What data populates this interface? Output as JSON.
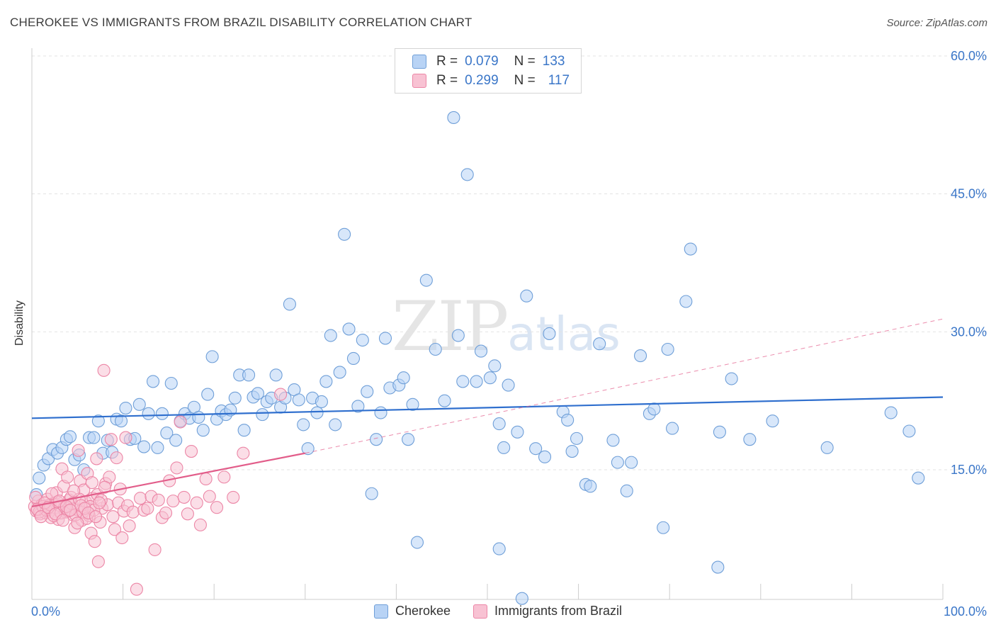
{
  "title": "CHEROKEE VS IMMIGRANTS FROM BRAZIL DISABILITY CORRELATION CHART",
  "source": "Source: ZipAtlas.com",
  "watermark": {
    "zip": "ZIP",
    "atlas": "atlas"
  },
  "colors": {
    "cherokee_fill": "#b8d3f5",
    "cherokee_stroke": "#6f9fd8",
    "cherokee_line": "#2f6fce",
    "brazil_fill": "#f8c2d3",
    "brazil_stroke": "#ec86a6",
    "brazil_line": "#e25d8a",
    "axis_text": "#3a76c8",
    "grid": "#e3e3e3"
  },
  "legend": {
    "rows": [
      {
        "r_label": "R =",
        "r_value": "0.079",
        "n_label": "N =",
        "n_value": "133"
      },
      {
        "r_label": "R =",
        "r_value": "0.299",
        "n_label": "N =",
        "n_value": "117"
      }
    ],
    "bottom": [
      "Cherokee",
      "Immigrants from Brazil"
    ]
  },
  "chart_data": {
    "type": "scatter",
    "title": "CHEROKEE VS IMMIGRANTS FROM BRAZIL DISABILITY CORRELATION CHART",
    "xlabel": "",
    "ylabel": "Disability",
    "xlim": [
      0,
      100
    ],
    "ylim": [
      0,
      62
    ],
    "x_tick_labels": [
      "0.0%",
      "100.0%"
    ],
    "y_ticks": [
      15,
      30,
      45,
      60
    ],
    "y_tick_labels": [
      "15.0%",
      "30.0%",
      "45.0%",
      "60.0%"
    ],
    "grid": "horizontal dashed",
    "legend_position": "top-center",
    "series": [
      {
        "name": "Cherokee",
        "r": 0.079,
        "n": 133,
        "trend": {
          "x": [
            0,
            100
          ],
          "y": [
            20.6,
            22.9
          ],
          "style": "solid"
        },
        "points": [
          [
            0.5,
            12.3
          ],
          [
            0.8,
            14.1
          ],
          [
            1.3,
            15.5
          ],
          [
            1.8,
            16.2
          ],
          [
            2.3,
            17.2
          ],
          [
            2.8,
            16.8
          ],
          [
            3.3,
            17.4
          ],
          [
            3.8,
            18.3
          ],
          [
            4.2,
            18.6
          ],
          [
            4.7,
            16.1
          ],
          [
            5.2,
            16.6
          ],
          [
            5.7,
            15.0
          ],
          [
            6.3,
            18.5
          ],
          [
            6.8,
            18.5
          ],
          [
            7.3,
            20.3
          ],
          [
            7.8,
            16.8
          ],
          [
            8.3,
            18.2
          ],
          [
            8.8,
            16.9
          ],
          [
            9.3,
            20.5
          ],
          [
            9.8,
            20.3
          ],
          [
            10.3,
            21.7
          ],
          [
            10.8,
            18.3
          ],
          [
            11.3,
            18.4
          ],
          [
            11.8,
            22.1
          ],
          [
            12.3,
            17.5
          ],
          [
            12.8,
            21.1
          ],
          [
            13.3,
            24.6
          ],
          [
            13.8,
            17.4
          ],
          [
            14.3,
            21.1
          ],
          [
            14.8,
            19.0
          ],
          [
            15.3,
            24.4
          ],
          [
            15.8,
            18.2
          ],
          [
            16.3,
            20.3
          ],
          [
            16.8,
            21.1
          ],
          [
            17.3,
            20.6
          ],
          [
            17.8,
            21.8
          ],
          [
            18.3,
            20.7
          ],
          [
            18.8,
            19.3
          ],
          [
            19.3,
            23.2
          ],
          [
            19.8,
            27.3
          ],
          [
            20.3,
            20.5
          ],
          [
            20.8,
            21.4
          ],
          [
            21.3,
            21.0
          ],
          [
            21.8,
            21.5
          ],
          [
            22.3,
            22.8
          ],
          [
            22.8,
            25.3
          ],
          [
            23.3,
            19.3
          ],
          [
            23.8,
            25.3
          ],
          [
            24.3,
            22.9
          ],
          [
            24.8,
            23.3
          ],
          [
            25.3,
            21.0
          ],
          [
            25.8,
            22.4
          ],
          [
            26.3,
            22.8
          ],
          [
            26.8,
            25.3
          ],
          [
            27.3,
            21.8
          ],
          [
            27.8,
            22.8
          ],
          [
            28.3,
            33.0
          ],
          [
            28.8,
            23.7
          ],
          [
            29.3,
            22.6
          ],
          [
            29.8,
            19.9
          ],
          [
            30.3,
            17.3
          ],
          [
            30.8,
            22.8
          ],
          [
            31.3,
            21.2
          ],
          [
            31.8,
            22.4
          ],
          [
            32.3,
            24.6
          ],
          [
            32.8,
            29.6
          ],
          [
            33.3,
            19.9
          ],
          [
            33.8,
            25.6
          ],
          [
            34.3,
            40.6
          ],
          [
            34.8,
            30.3
          ],
          [
            35.3,
            27.1
          ],
          [
            35.8,
            21.9
          ],
          [
            36.3,
            29.1
          ],
          [
            36.8,
            23.5
          ],
          [
            37.3,
            12.4
          ],
          [
            37.8,
            18.3
          ],
          [
            38.3,
            21.2
          ],
          [
            38.8,
            29.3
          ],
          [
            39.3,
            23.9
          ],
          [
            40.3,
            24.2
          ],
          [
            40.8,
            25.0
          ],
          [
            41.3,
            18.3
          ],
          [
            41.8,
            22.1
          ],
          [
            42.3,
            7.1
          ],
          [
            43.3,
            35.6
          ],
          [
            44.3,
            28.1
          ],
          [
            45.3,
            22.5
          ],
          [
            46.3,
            53.3
          ],
          [
            46.8,
            29.6
          ],
          [
            47.3,
            24.6
          ],
          [
            47.8,
            47.1
          ],
          [
            48.8,
            24.6
          ],
          [
            49.3,
            27.9
          ],
          [
            50.3,
            25.0
          ],
          [
            50.8,
            26.3
          ],
          [
            51.3,
            20.0
          ],
          [
            51.8,
            17.4
          ],
          [
            51.3,
            6.4
          ],
          [
            52.3,
            24.2
          ],
          [
            53.3,
            19.1
          ],
          [
            53.8,
            1.0
          ],
          [
            54.3,
            33.9
          ],
          [
            55.3,
            17.3
          ],
          [
            56.3,
            16.4
          ],
          [
            56.8,
            29.8
          ],
          [
            58.3,
            21.3
          ],
          [
            58.8,
            20.4
          ],
          [
            59.3,
            17.0
          ],
          [
            59.8,
            18.4
          ],
          [
            60.8,
            13.4
          ],
          [
            61.3,
            13.2
          ],
          [
            62.3,
            28.7
          ],
          [
            63.8,
            18.2
          ],
          [
            64.3,
            15.8
          ],
          [
            65.3,
            12.7
          ],
          [
            65.8,
            15.8
          ],
          [
            66.8,
            27.4
          ],
          [
            67.8,
            21.1
          ],
          [
            68.3,
            21.6
          ],
          [
            69.3,
            8.7
          ],
          [
            69.8,
            28.1
          ],
          [
            70.3,
            19.5
          ],
          [
            71.8,
            33.3
          ],
          [
            72.3,
            39.0
          ],
          [
            75.3,
            4.4
          ],
          [
            75.5,
            19.1
          ],
          [
            76.8,
            24.9
          ],
          [
            78.8,
            18.3
          ],
          [
            81.3,
            20.3
          ],
          [
            87.3,
            17.4
          ],
          [
            94.3,
            21.2
          ],
          [
            96.3,
            19.2
          ],
          [
            97.3,
            14.1
          ]
        ]
      },
      {
        "name": "Immigrants from Brazil",
        "r": 0.299,
        "n": 117,
        "trend": {
          "x": [
            0,
            30,
            100
          ],
          "y": [
            11.0,
            16.8,
            31.4
          ],
          "style": "solid to 30, dashed after"
        },
        "points": [
          [
            0.3,
            11.0
          ],
          [
            0.5,
            10.5
          ],
          [
            0.7,
            11.6
          ],
          [
            0.9,
            10.2
          ],
          [
            1.1,
            11.2
          ],
          [
            1.3,
            10.8
          ],
          [
            1.5,
            10.3
          ],
          [
            1.7,
            11.8
          ],
          [
            1.9,
            10.6
          ],
          [
            2.1,
            9.8
          ],
          [
            2.3,
            11.3
          ],
          [
            2.5,
            10.9
          ],
          [
            2.7,
            12.5
          ],
          [
            2.9,
            9.6
          ],
          [
            3.1,
            11.1
          ],
          [
            3.3,
            15.1
          ],
          [
            3.5,
            13.2
          ],
          [
            3.7,
            10.4
          ],
          [
            3.9,
            14.2
          ],
          [
            4.1,
            11.7
          ],
          [
            4.3,
            12.0
          ],
          [
            4.5,
            10.1
          ],
          [
            4.7,
            8.7
          ],
          [
            4.9,
            10.7
          ],
          [
            5.1,
            17.1
          ],
          [
            5.3,
            13.8
          ],
          [
            5.5,
            9.5
          ],
          [
            5.7,
            12.8
          ],
          [
            5.9,
            11.5
          ],
          [
            6.1,
            14.6
          ],
          [
            6.3,
            10.0
          ],
          [
            6.5,
            8.1
          ],
          [
            6.7,
            11.9
          ],
          [
            6.9,
            7.2
          ],
          [
            7.1,
            16.2
          ],
          [
            7.3,
            5.0
          ],
          [
            7.5,
            9.3
          ],
          [
            7.7,
            10.8
          ],
          [
            7.9,
            25.8
          ],
          [
            8.1,
            13.5
          ],
          [
            8.3,
            11.2
          ],
          [
            8.5,
            14.2
          ],
          [
            8.7,
            18.3
          ],
          [
            8.9,
            9.9
          ],
          [
            9.1,
            8.5
          ],
          [
            9.3,
            16.3
          ],
          [
            9.5,
            11.4
          ],
          [
            9.7,
            12.9
          ],
          [
            9.9,
            7.6
          ],
          [
            10.1,
            10.5
          ],
          [
            10.3,
            18.5
          ],
          [
            10.5,
            11.1
          ],
          [
            10.7,
            8.9
          ],
          [
            11.1,
            10.4
          ],
          [
            11.5,
            2.0
          ],
          [
            11.9,
            11.9
          ],
          [
            12.3,
            10.6
          ],
          [
            12.7,
            10.8
          ],
          [
            13.1,
            12.1
          ],
          [
            13.5,
            6.3
          ],
          [
            13.9,
            11.7
          ],
          [
            14.3,
            9.8
          ],
          [
            14.7,
            10.3
          ],
          [
            15.1,
            13.8
          ],
          [
            15.5,
            11.6
          ],
          [
            15.9,
            15.2
          ],
          [
            16.3,
            20.2
          ],
          [
            16.7,
            12.0
          ],
          [
            17.1,
            10.2
          ],
          [
            17.5,
            17.0
          ],
          [
            18.1,
            11.4
          ],
          [
            18.5,
            9.0
          ],
          [
            19.1,
            14.0
          ],
          [
            19.5,
            12.1
          ],
          [
            20.3,
            10.9
          ],
          [
            21.1,
            14.2
          ],
          [
            22.1,
            12.0
          ],
          [
            23.2,
            16.8
          ],
          [
            27.3,
            23.2
          ],
          [
            0.8,
            10.4
          ],
          [
            1.2,
            11.0
          ],
          [
            1.6,
            10.6
          ],
          [
            2.0,
            11.2
          ],
          [
            2.4,
            10.0
          ],
          [
            2.8,
            11.5
          ],
          [
            3.2,
            10.3
          ],
          [
            3.6,
            10.9
          ],
          [
            4.0,
            10.5
          ],
          [
            4.4,
            11.3
          ],
          [
            4.8,
            10.1
          ],
          [
            5.2,
            11.8
          ],
          [
            5.6,
            10.4
          ],
          [
            6.0,
            9.7
          ],
          [
            6.4,
            11.0
          ],
          [
            6.8,
            10.6
          ],
          [
            7.2,
            12.3
          ],
          [
            7.6,
            11.7
          ],
          [
            8.0,
            13.1
          ],
          [
            0.4,
            12.0
          ],
          [
            0.6,
            10.7
          ],
          [
            1.0,
            9.9
          ],
          [
            1.4,
            11.4
          ],
          [
            1.8,
            10.9
          ],
          [
            2.2,
            12.4
          ],
          [
            2.6,
            10.2
          ],
          [
            3.0,
            11.6
          ],
          [
            3.4,
            9.5
          ],
          [
            3.8,
            11.0
          ],
          [
            4.2,
            10.6
          ],
          [
            4.6,
            12.7
          ],
          [
            5.0,
            9.2
          ],
          [
            5.4,
            11.1
          ],
          [
            5.8,
            10.8
          ],
          [
            6.2,
            10.3
          ],
          [
            6.6,
            13.6
          ],
          [
            7.0,
            9.9
          ],
          [
            7.4,
            11.4
          ]
        ]
      }
    ]
  }
}
